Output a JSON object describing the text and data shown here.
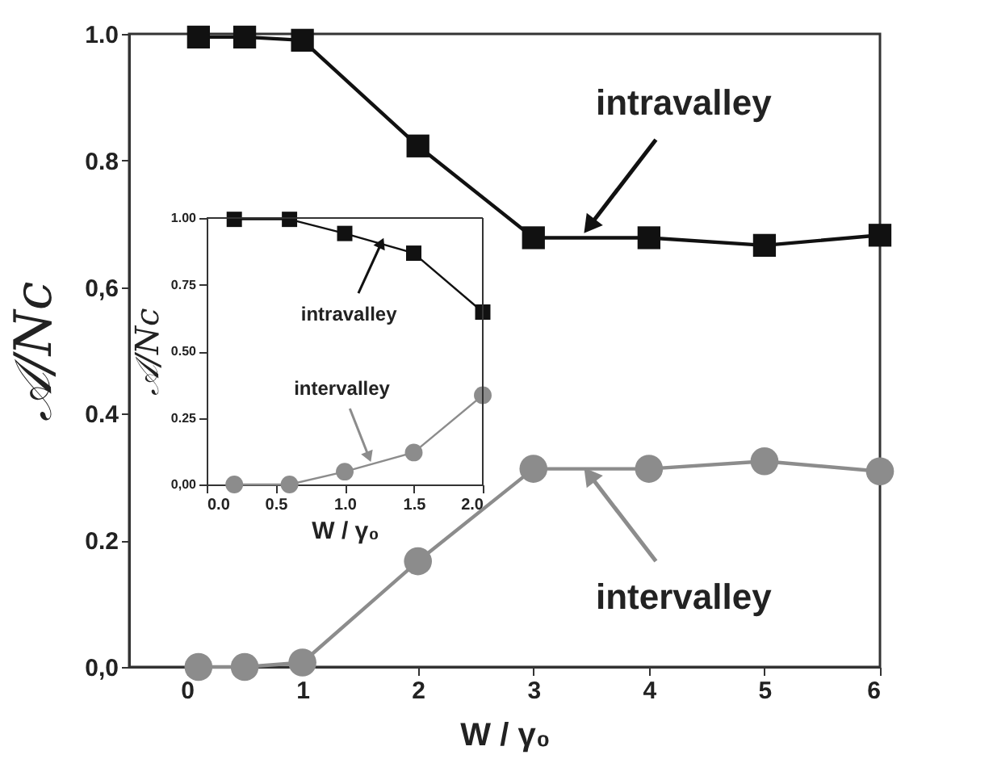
{
  "chart_data": [
    {
      "type": "line",
      "xlabel": "W / γ₀",
      "ylabel": "𝒜/Nc",
      "x": [
        0.1,
        0.5,
        1,
        2,
        3,
        4,
        5,
        6
      ],
      "series": [
        {
          "color": "#111111",
          "marker": "square",
          "values": [
            0.995,
            0.995,
            0.99,
            0.823,
            0.678,
            0.678,
            0.666,
            0.682
          ]
        },
        {
          "color": "#8c8c8c",
          "marker": "circle",
          "values": [
            0.0,
            0.0,
            0.007,
            0.167,
            0.313,
            0.313,
            0.325,
            0.309
          ]
        }
      ],
      "xlim": [
        -0.5,
        6
      ],
      "ylim": [
        0,
        1
      ],
      "xticks": [
        0,
        1,
        2,
        3,
        4,
        5,
        6
      ],
      "yticks": [
        {
          "value": 0,
          "label": "0,0"
        },
        {
          "value": 0.2,
          "label": "0.2"
        },
        {
          "value": 0.4,
          "label": "0.4"
        },
        {
          "value": 0.6,
          "label": "0,6"
        },
        {
          "value": 0.8,
          "label": "0.8"
        },
        {
          "value": 1,
          "label": "1.0"
        }
      ],
      "annotations": [
        {
          "text": "intravalley",
          "x": 3.5,
          "y": 0.7
        },
        {
          "text": "intervalley",
          "x": 3.5,
          "y": 0.3
        }
      ],
      "grid": false
    },
    {
      "type": "line",
      "xlabel": "W / γ₀",
      "ylabel": "𝒜/Nc",
      "x": [
        0.2,
        0.6,
        1.0,
        1.5,
        2.0
      ],
      "series": [
        {
          "color": "#111111",
          "marker": "square",
          "values": [
            0.995,
            0.995,
            0.942,
            0.868,
            0.647
          ]
        },
        {
          "color": "#8c8c8c",
          "marker": "circle",
          "values": [
            0.0,
            0.0,
            0.048,
            0.12,
            0.335
          ]
        }
      ],
      "xlim": [
        0,
        2
      ],
      "ylim": [
        0,
        1
      ],
      "xticks": [
        {
          "value": 0,
          "label": "0.0"
        },
        {
          "value": 0.5,
          "label": "0.5"
        },
        {
          "value": 1,
          "label": "1.0"
        },
        {
          "value": 1.5,
          "label": "1.5"
        },
        {
          "value": 2,
          "label": "2.0"
        }
      ],
      "yticks": [
        {
          "value": 0,
          "label": "0,00"
        },
        {
          "value": 0.25,
          "label": "0.25"
        },
        {
          "value": 0.5,
          "label": "0.50"
        },
        {
          "value": 0.75,
          "label": "0.75"
        },
        {
          "value": 1,
          "label": "1.00"
        }
      ],
      "annotations": [
        {
          "text": "intravalley",
          "x": 1.26,
          "y": 0.9
        },
        {
          "text": "intervalley",
          "x": 1.17,
          "y": 0.11
        }
      ],
      "grid": false
    }
  ]
}
